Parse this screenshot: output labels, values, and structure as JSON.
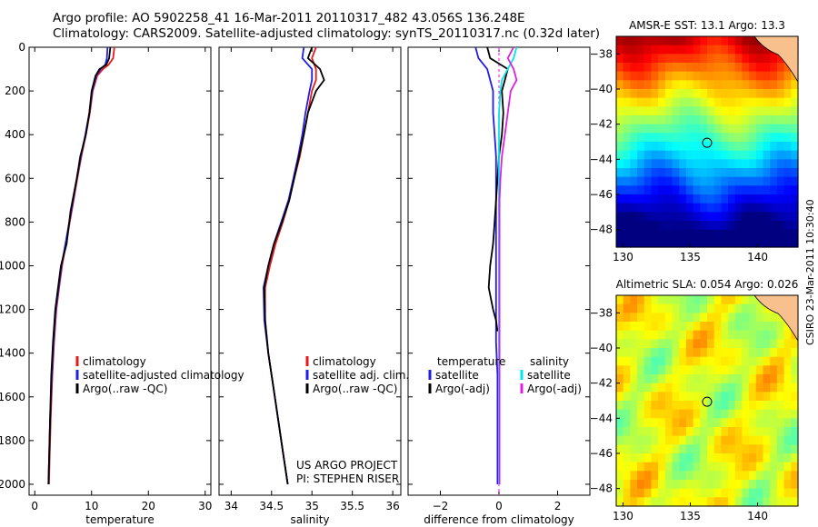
{
  "header": {
    "line1": "Argo profile: AO 5902258_41 16-Mar-2011 20110317_482 43.056S 136.248E",
    "line2": "Climatology: CARS2009. Satellite-adjusted climatology: synTS_20110317.nc (0.32d later)"
  },
  "side_stamp": "CSIRO 23-Mar-2011 10:30:40",
  "colors": {
    "climatology": "#e41a1c",
    "satellite": "#1f1fe6",
    "argo": "#000000",
    "salinity_sat": "#00e5ee",
    "salinity_argo": "#e020e0",
    "zero_line": "#ff00ff"
  },
  "chart_data": [
    {
      "type": "line",
      "id": "temperature",
      "xlabel": "temperature",
      "ylabel": "",
      "xlim": [
        -1,
        31
      ],
      "ylim": [
        2050,
        0
      ],
      "xticks": [
        0,
        10,
        20,
        30
      ],
      "yticks": [
        0,
        200,
        400,
        600,
        800,
        1000,
        1200,
        1400,
        1600,
        1800,
        2000
      ],
      "series": [
        {
          "name": "climatology",
          "color_key": "climatology",
          "x": [
            14.0,
            13.8,
            13.0,
            12.0,
            11.0,
            10.2,
            9.7,
            9.0,
            8.2,
            7.5,
            6.5,
            5.5,
            4.8,
            4.3,
            3.8,
            3.4,
            3.1,
            2.8,
            2.6,
            2.5
          ],
          "y": [
            0,
            50,
            80,
            100,
            130,
            200,
            300,
            400,
            500,
            600,
            750,
            900,
            1000,
            1100,
            1200,
            1350,
            1500,
            1700,
            1900,
            2000
          ]
        },
        {
          "name": "satellite-adjusted climatology",
          "color_key": "satellite",
          "x": [
            12.8,
            12.7,
            12.4,
            11.6,
            10.8,
            10.1,
            9.6,
            8.9,
            8.1,
            7.4,
            6.4,
            5.4,
            4.7,
            4.2,
            3.7,
            3.3,
            3.0,
            2.7,
            2.5,
            2.4
          ],
          "y": [
            0,
            50,
            80,
            100,
            130,
            200,
            300,
            400,
            500,
            600,
            750,
            900,
            1000,
            1100,
            1200,
            1350,
            1500,
            1700,
            1900,
            2000
          ]
        },
        {
          "name": "Argo(..raw -QC)",
          "color_key": "argo",
          "x": [
            13.3,
            13.1,
            12.6,
            11.4,
            10.7,
            10.0,
            9.6,
            9.0,
            8.0,
            7.4,
            6.3,
            5.6,
            4.6,
            4.1,
            3.6,
            3.2,
            2.9,
            2.7,
            2.5,
            2.4
          ],
          "y": [
            0,
            50,
            80,
            100,
            130,
            200,
            300,
            400,
            500,
            600,
            750,
            900,
            1000,
            1100,
            1200,
            1350,
            1500,
            1700,
            1900,
            2000
          ]
        }
      ],
      "legend": [
        "climatology",
        "satellite-adjusted climatology",
        "Argo(..raw -QC)"
      ]
    },
    {
      "type": "line",
      "id": "salinity",
      "xlabel": "salinity",
      "xlim": [
        33.85,
        36.1
      ],
      "ylim": [
        2050,
        0
      ],
      "xticks": [
        34,
        34.5,
        35,
        35.5,
        36
      ],
      "xtick_labels": [
        "34",
        "34.5",
        "35",
        "35.5",
        "36"
      ],
      "series": [
        {
          "name": "climatology",
          "color_key": "climatology",
          "x": [
            35.05,
            35.0,
            35.05,
            35.05,
            35.0,
            34.95,
            34.9,
            34.85,
            34.78,
            34.72,
            34.64,
            34.55,
            34.48,
            34.42,
            34.42,
            34.46,
            34.52,
            34.58,
            34.64,
            34.68,
            34.7
          ],
          "y": [
            0,
            50,
            100,
            150,
            200,
            300,
            400,
            500,
            600,
            700,
            800,
            900,
            1000,
            1100,
            1250,
            1400,
            1550,
            1700,
            1850,
            1950,
            2000
          ]
        },
        {
          "name": "satellite adj. clim.",
          "color_key": "satellite",
          "x": [
            34.9,
            34.88,
            35.0,
            35.0,
            34.97,
            34.92,
            34.88,
            34.83,
            34.77,
            34.71,
            34.62,
            34.53,
            34.46,
            34.4,
            34.41,
            34.46,
            34.52,
            34.58,
            34.64,
            34.68,
            34.7
          ],
          "y": [
            0,
            50,
            100,
            150,
            200,
            300,
            400,
            500,
            600,
            700,
            800,
            900,
            1000,
            1100,
            1250,
            1400,
            1550,
            1700,
            1850,
            1950,
            2000
          ]
        },
        {
          "name": "Argo(..raw -QC)",
          "color_key": "argo",
          "x": [
            35.0,
            34.95,
            35.1,
            35.15,
            35.05,
            34.95,
            34.9,
            34.84,
            34.78,
            34.72,
            34.63,
            34.53,
            34.46,
            34.41,
            34.42,
            34.46,
            34.52,
            34.58,
            34.64,
            34.68,
            34.7
          ],
          "y": [
            0,
            50,
            100,
            150,
            200,
            300,
            400,
            500,
            600,
            700,
            800,
            900,
            1000,
            1100,
            1250,
            1400,
            1550,
            1700,
            1850,
            1950,
            2000
          ]
        }
      ],
      "legend": [
        "climatology",
        "satellite adj. clim.",
        "Argo(..raw -QC)"
      ],
      "annotation": [
        "US ARGO PROJECT",
        "PI: STEPHEN RISER"
      ]
    },
    {
      "type": "line",
      "id": "difference",
      "xlabel": "difference from climatology",
      "xlim": [
        -3.1,
        3.1
      ],
      "ylim": [
        2050,
        0
      ],
      "xticks": [
        -2,
        0,
        2
      ],
      "series": [
        {
          "name": "temperature satellite",
          "color_key": "satellite",
          "x": [
            -0.8,
            -0.7,
            -0.4,
            -0.3,
            -0.2,
            -0.2,
            -0.15,
            -0.1,
            -0.1,
            -0.1,
            -0.1,
            -0.1,
            -0.1,
            -0.1,
            -0.1,
            -0.1,
            -0.05,
            -0.05,
            -0.05,
            -0.05
          ],
          "y": [
            0,
            50,
            100,
            150,
            200,
            300,
            400,
            500,
            600,
            700,
            800,
            900,
            1000,
            1100,
            1200,
            1350,
            1500,
            1700,
            1900,
            2000
          ]
        },
        {
          "name": "temperature Argo(-adj)",
          "color_key": "argo",
          "x": [
            -0.4,
            -0.3,
            0.3,
            0.2,
            0.1,
            0.15,
            0.1,
            0.0,
            -0.05,
            -0.1,
            -0.15,
            -0.2,
            -0.3,
            -0.35,
            -0.2,
            -0.1,
            -0.05
          ],
          "y": [
            0,
            50,
            100,
            150,
            200,
            300,
            400,
            500,
            600,
            700,
            800,
            900,
            1000,
            1100,
            1200,
            1250,
            1300
          ]
        },
        {
          "name": "salinity satellite",
          "color_key": "salinity_sat",
          "x": [
            0.6,
            0.5,
            0.3,
            0.1,
            0.05,
            0.0,
            0.0,
            0.0,
            0.0,
            0.0,
            0.0,
            0.0,
            0.0,
            0.0,
            0.0,
            0.0,
            0.0,
            0.0,
            0.0,
            0.0
          ],
          "y": [
            0,
            50,
            100,
            150,
            200,
            300,
            400,
            500,
            600,
            700,
            800,
            900,
            1000,
            1100,
            1200,
            1350,
            1500,
            1700,
            1900,
            2000
          ]
        },
        {
          "name": "salinity Argo(-adj)",
          "color_key": "salinity_argo",
          "x": [
            0.5,
            0.3,
            0.5,
            0.6,
            0.4,
            0.3,
            0.2,
            0.1,
            0.05,
            0.02,
            0.02,
            0.02,
            0.02,
            0.02,
            0.02,
            0.02,
            0.02,
            0.02,
            0.02,
            0.02
          ],
          "y": [
            0,
            50,
            100,
            150,
            200,
            300,
            400,
            500,
            600,
            700,
            800,
            900,
            1000,
            1100,
            1200,
            1350,
            1500,
            1700,
            1900,
            2000
          ]
        }
      ],
      "legend_temperature": {
        "title": "temperature",
        "items": [
          "satellite",
          "Argo(-adj)"
        ]
      },
      "legend_salinity": {
        "title": "salinity",
        "items": [
          "satellite",
          "Argo(-adj)"
        ]
      }
    },
    {
      "type": "heatmap",
      "id": "sst_map",
      "title": "AMSR-E SST: 13.1 Argo: 13.3",
      "xlim": [
        129.5,
        143
      ],
      "ylim": [
        -49,
        -37
      ],
      "xticks": [
        130,
        135,
        140
      ],
      "yticks": [
        -38,
        -40,
        -42,
        -44,
        -46,
        -48
      ],
      "marker": {
        "lon": 136.248,
        "lat": -43.056
      }
    },
    {
      "type": "heatmap",
      "id": "sla_map",
      "title": "Altimetric SLA: 0.054 Argo: 0.026",
      "xlim": [
        129.5,
        143
      ],
      "ylim": [
        -49,
        -37
      ],
      "xticks": [
        130,
        135,
        140
      ],
      "yticks": [
        -38,
        -40,
        -42,
        -44,
        -46,
        -48
      ],
      "marker": {
        "lon": 136.248,
        "lat": -43.056
      }
    }
  ]
}
